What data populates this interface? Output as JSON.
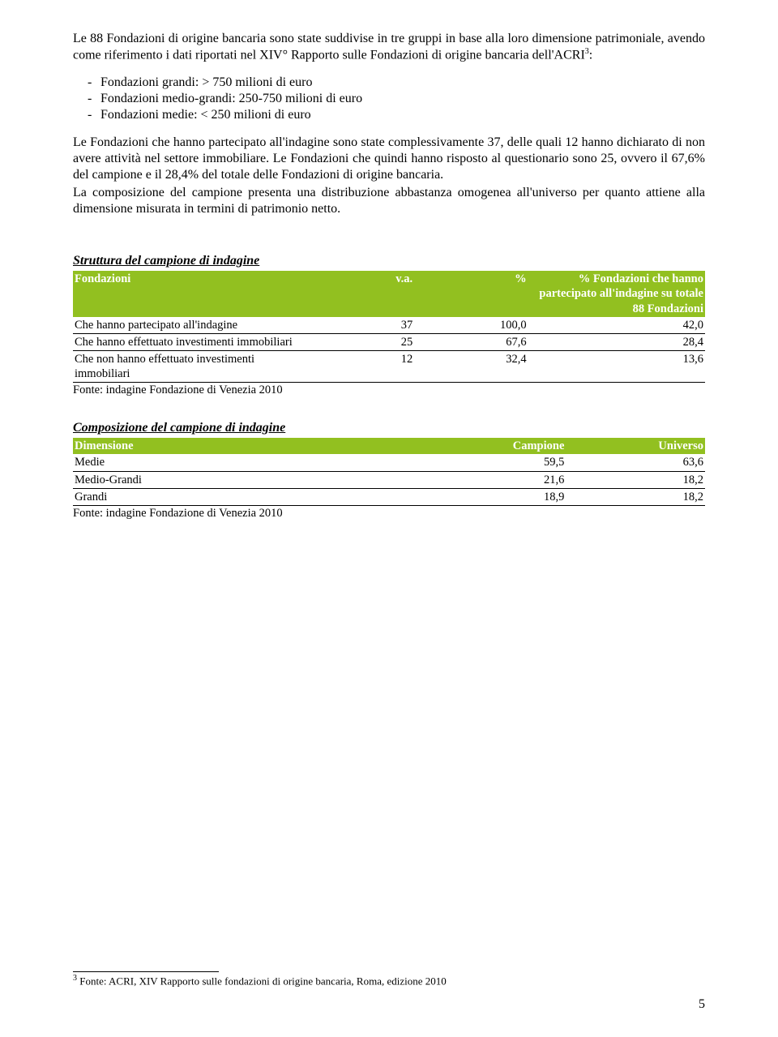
{
  "text": {
    "p1": "Le 88 Fondazioni di origine bancaria sono state suddivise in tre gruppi in base alla loro dimensione patrimoniale, avendo come riferimento i dati riportati nel XIV° Rapporto sulle Fondazioni di origine bancaria dell'ACRI",
    "p1_sup": "3",
    "p1_tail": ":",
    "li1": "Fondazioni grandi: > 750 milioni di euro",
    "li2": "Fondazioni medio-grandi: 250-750 milioni di euro",
    "li3": "Fondazioni medie: < 250 milioni di euro",
    "p2": "Le Fondazioni che hanno partecipato all'indagine sono state complessivamente 37, delle quali 12 hanno dichiarato di non avere attività nel settore immobiliare. Le Fondazioni che quindi hanno risposto al questionario sono 25, ovvero il 67,6% del campione e il 28,4% del totale delle Fondazioni di origine bancaria.",
    "p3": "La composizione del campione presenta una distribuzione abbastanza omogenea all'universo per quanto attiene alla dimensione misurata in termini di patrimonio netto.",
    "t1_title": "Struttura del campione di indagine",
    "t2_title": "Composizione del campione di indagine",
    "source": "Fonte: indagine Fondazione di Venezia 2010",
    "footnote_num": "3",
    "footnote": " Fonte: ACRI, XIV Rapporto sulle fondazioni di origine bancaria, Roma, edizione 2010",
    "page_number": "5"
  },
  "table1": {
    "header_bg": "#92c020",
    "header_fg": "#ffffff",
    "row_border": "#000000",
    "columns": [
      "Fondazioni",
      "v.a.",
      "%",
      "% Fondazioni che hanno partecipato all'indagine su totale 88 Fondazioni"
    ],
    "col_widths_pct": [
      38,
      16,
      18,
      28
    ],
    "col_align": [
      "left",
      "right",
      "right",
      "right"
    ],
    "rows": [
      [
        "Che hanno partecipato all'indagine",
        "37",
        "100,0",
        "42,0"
      ],
      [
        "Che hanno effettuato investimenti immobiliari",
        "25",
        "67,6",
        "28,4"
      ],
      [
        "Che non hanno effettuato investimenti immobiliari",
        "12",
        "32,4",
        "13,6"
      ]
    ]
  },
  "table2": {
    "header_bg": "#92c020",
    "header_fg": "#ffffff",
    "row_border": "#000000",
    "columns": [
      "Dimensione",
      "Campione",
      "Universo"
    ],
    "col_widths_pct": [
      56,
      22,
      22
    ],
    "col_align": [
      "left",
      "right",
      "right"
    ],
    "rows": [
      [
        "Medie",
        "59,5",
        "63,6"
      ],
      [
        "Medio-Grandi",
        "21,6",
        "18,2"
      ],
      [
        "Grandi",
        "18,9",
        "18,2"
      ]
    ]
  }
}
